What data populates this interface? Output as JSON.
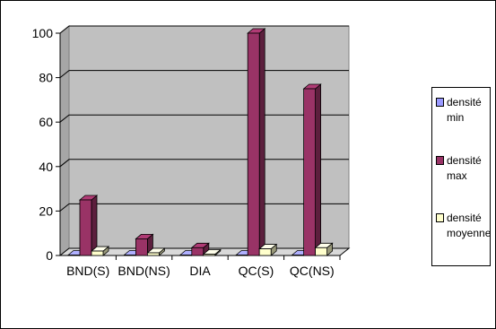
{
  "chart_data": {
    "type": "bar",
    "style": "3d-clustered-column",
    "categories": [
      "BND(S)",
      "BND(NS)",
      "DIA",
      "QC(S)",
      "QC(NS)"
    ],
    "series": [
      {
        "name": "densité min",
        "values": [
          0.2,
          0.2,
          0.2,
          0.2,
          0.2
        ],
        "color": "#9999ff"
      },
      {
        "name": "densité max",
        "values": [
          25,
          7.5,
          3.5,
          100,
          75
        ],
        "color": "#993366"
      },
      {
        "name": "densité moyenne",
        "values": [
          2,
          1.2,
          0.6,
          3,
          3.5
        ],
        "color": "#ffffcc"
      }
    ],
    "yticks": [
      0,
      20,
      40,
      60,
      80,
      100
    ],
    "ylim": [
      0,
      100
    ],
    "grid": true,
    "plot_background": "#c0c0c0",
    "legend_position": "right"
  }
}
